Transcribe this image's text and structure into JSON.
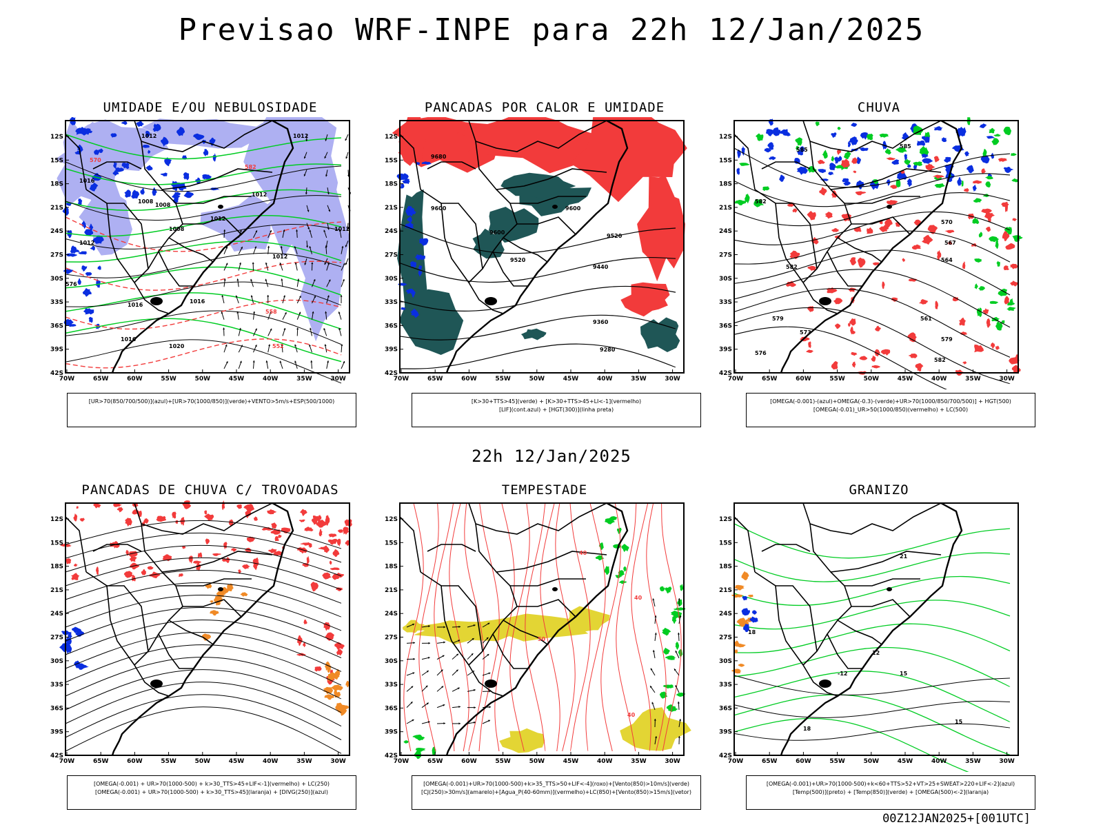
{
  "header": {
    "title": "Previsao WRF-INPE  para 22h 12/Jan/2025"
  },
  "mid": {
    "title": "22h 12/Jan/2025"
  },
  "footer": {
    "code": "00Z12JAN2025+[001UTC]"
  },
  "axes": {
    "lat_labels": [
      "12S",
      "15S",
      "18S",
      "21S",
      "24S",
      "27S",
      "30S",
      "33S",
      "36S",
      "39S",
      "42S"
    ],
    "lon_labels": [
      "70W",
      "65W",
      "60W",
      "55W",
      "50W",
      "45W",
      "40W",
      "35W",
      "30W"
    ]
  },
  "colors": {
    "blue": "#0a2ee0",
    "lavender": "#aeb0f2",
    "green": "#00cc22",
    "red": "#f23b3b",
    "darkteal": "#1f5656",
    "orange": "#f08a26",
    "yellow": "#e3d534",
    "black": "#000000"
  },
  "panels": [
    {
      "title": "UMIDADE E/OU NEBULOSIDADE",
      "legend": [
        "[UR>70(850/700/500)](azul)+[UR>70(1000/850)](verde)+VENTO>5m/s+ESP(500/1000)"
      ],
      "labels": [
        "1012",
        "1012",
        "1016",
        "1008",
        "1008",
        "1012",
        "1012",
        "1012",
        "1016",
        "1016",
        "1016",
        "1020",
        "1012",
        "1012",
        "1008",
        "576",
        "570",
        "582",
        "552",
        "558"
      ]
    },
    {
      "title": "PANCADAS POR CALOR E UMIDADE",
      "legend": [
        "[K>30+TTS>45](verde) + [K>30+TTS>45+LI<-1](vermelho)",
        "[LIF](cont.azul) + [HGT(300)](linha preta)"
      ],
      "labels": [
        "9680",
        "9600",
        "9600",
        "9520",
        "9520",
        "9440",
        "9360",
        "9280",
        "9600"
      ]
    },
    {
      "title": "CHUVA",
      "legend": [
        "[OMEGA(-0.001)-(azul)+OMEGA(-0.3)-(verde)+UR>70(1000/850/700/500)] + HGT(500)",
        "[OMEGA(-0.01)_UR>50(1000/850)(vermelho) + LC(500)"
      ],
      "labels": [
        "585",
        "585",
        "582",
        "582",
        "579",
        "576",
        "573",
        "570",
        "567",
        "564",
        "561",
        "579",
        "582"
      ]
    },
    {
      "title": "PANCADAS DE CHUVA C/ TROVOADAS",
      "legend": [
        "[OMEGA(-0.001) + UR>70(1000-500) + k>30_TTS>45+LIF<-1](vermelho) + LC(250)",
        "[OMEGA(-0.001) + UR>70(1000-500) + k>30_TTS>45](laranja) + [DIVG(250)](azul)"
      ],
      "labels": []
    },
    {
      "title": "TEMPESTADE",
      "legend": [
        "[OMEGA(-0.001)+UR>70(1000-500)+k>35_TTS>50+LIF<-4](roxo)+[Vento(850)>10m/s](verde)",
        "[CJ(250)>30m/s](amarelo)+[Agua_P(40-60mm)](vermelho)+LC(850)+[Vento(850)>15m/s](vetor)"
      ],
      "labels": [
        "40",
        "40",
        "50",
        "40"
      ]
    },
    {
      "title": "GRANIZO",
      "legend": [
        "[OMEGA(-0.001)+UR>70(1000-500)+k<60+TTS>52+VT>25+SWEAT>220+LIF<-2](azul)",
        "[Temp(500)](preto) + [Temp(850)](verde) + [OMEGA(500)<-2](laranja)"
      ],
      "labels": [
        "21",
        "18",
        "15",
        "15",
        "18",
        "12",
        "-12"
      ]
    }
  ]
}
